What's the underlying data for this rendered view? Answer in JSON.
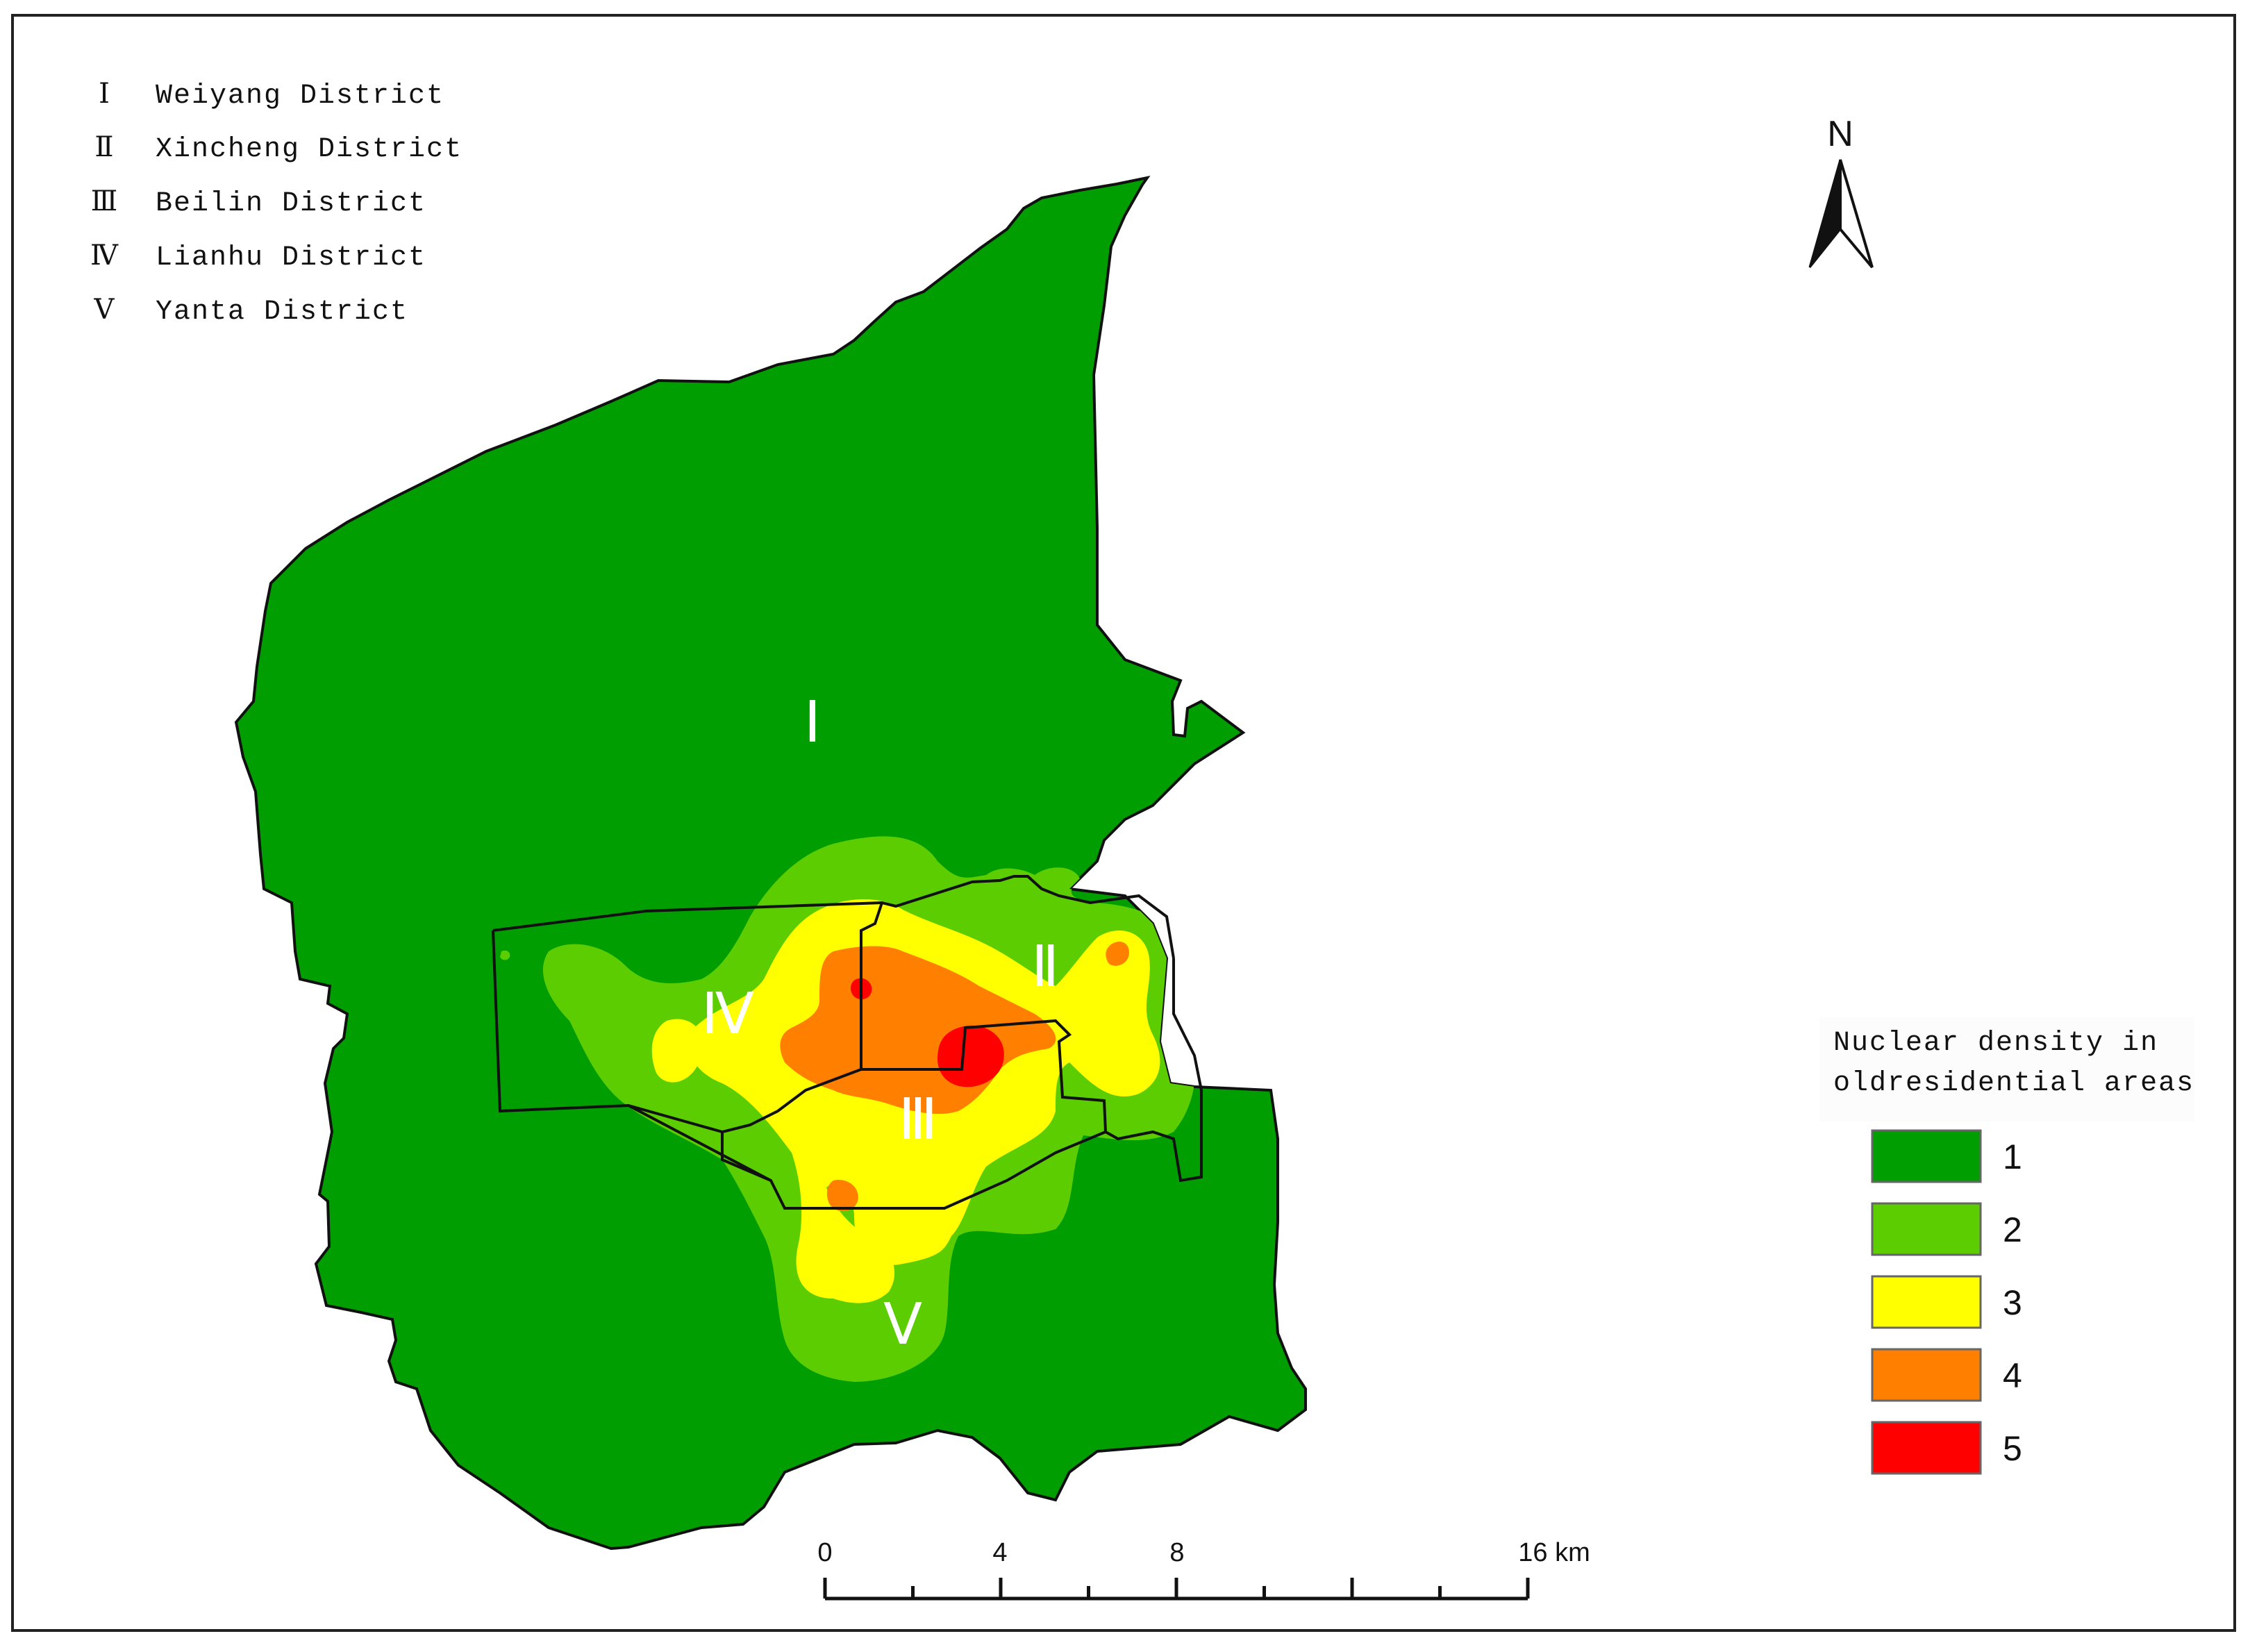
{
  "district_list": [
    {
      "numeral": "Ⅰ",
      "name": "Weiyang District"
    },
    {
      "numeral": "Ⅱ",
      "name": "Xincheng District"
    },
    {
      "numeral": "Ⅲ",
      "name": "Beilin District"
    },
    {
      "numeral": "Ⅳ",
      "name": "Lianhu District"
    },
    {
      "numeral": "Ⅴ",
      "name": "Yanta District"
    }
  ],
  "map_labels": {
    "weiyang": "Ⅰ",
    "xincheng": "Ⅱ",
    "beilin": "Ⅲ",
    "lianhu": "Ⅳ",
    "yanta": "Ⅴ"
  },
  "north_arrow": {
    "label": "N"
  },
  "legend": {
    "title_line1": "Nuclear density in",
    "title_line2": "oldresidential areas",
    "classes": [
      {
        "label": "1",
        "color": "#009e00"
      },
      {
        "label": "2",
        "color": "#5ccd00"
      },
      {
        "label": "3",
        "color": "#ffff00"
      },
      {
        "label": "4",
        "color": "#ff8000"
      },
      {
        "label": "5",
        "color": "#ff0000"
      }
    ]
  },
  "scale_bar": {
    "ticks": [
      "0",
      "4",
      "8",
      "16 km"
    ]
  }
}
